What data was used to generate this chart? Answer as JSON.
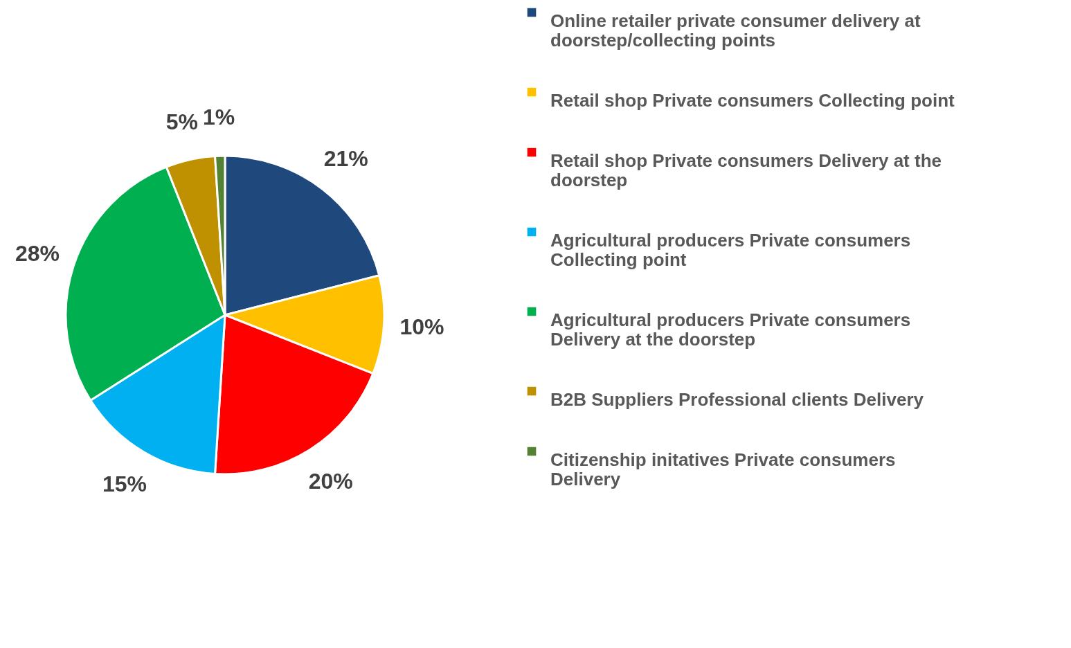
{
  "chart_data": {
    "type": "pie",
    "categories": [
      "Online retailer private consumer delivery at doorstep/collecting points",
      "Retail shop Private consumers Collecting point",
      "Retail shop Private consumers Delivery at the doorstep",
      "Agricultural producers Private consumers Collecting point",
      "Agricultural producers Private consumers Delivery at the doorstep",
      "B2B Suppliers  Professional clients  Delivery",
      "Citizenship initatives  Private consumers Delivery"
    ],
    "values": [
      21,
      10,
      20,
      15,
      28,
      5,
      1
    ],
    "colors": [
      "#1f497d",
      "#ffc000",
      "#ff0000",
      "#00b0f0",
      "#00b050",
      "#bf9000",
      "#548235"
    ],
    "value_labels": [
      "21%",
      "10%",
      "20%",
      "15%",
      "28%",
      "5%",
      "1%"
    ],
    "legend": "right"
  }
}
